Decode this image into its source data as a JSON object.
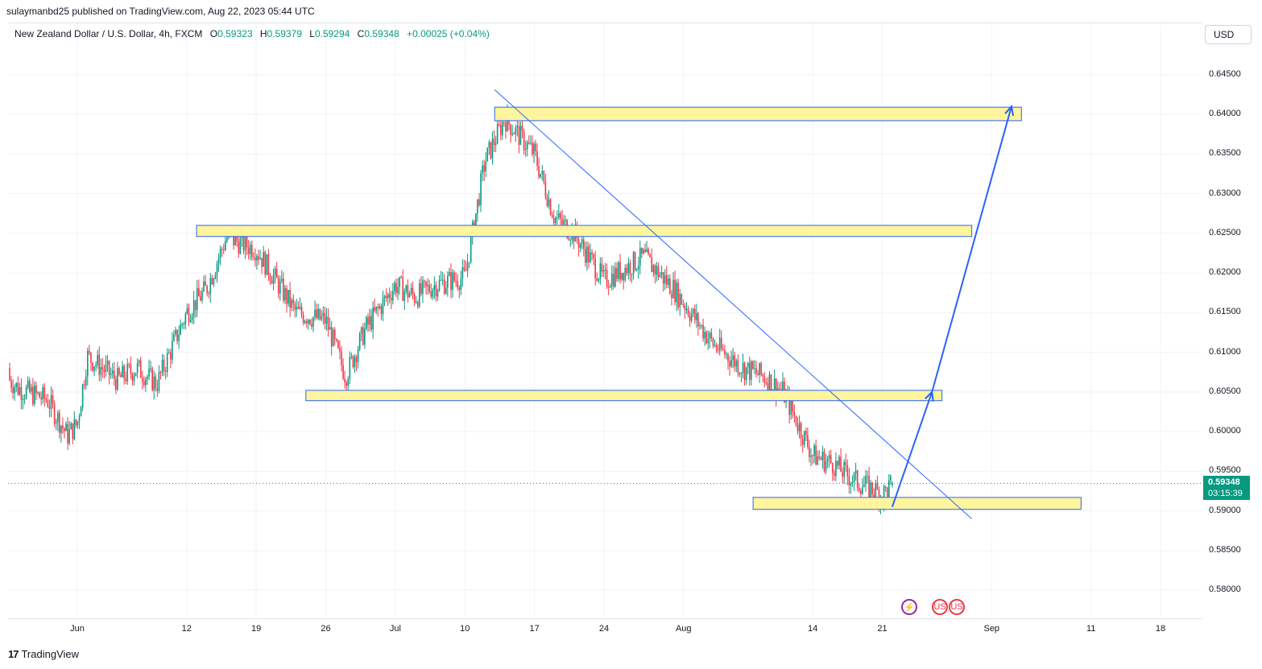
{
  "header": {
    "publish_line": "sulaymanbd25 published on TradingView.com, Aug 22, 2023 05:44 UTC"
  },
  "legend": {
    "symbol": "New Zealand Dollar / U.S. Dollar, 4h, FXCM",
    "o_label": "O",
    "o_value": "0.59323",
    "h_label": "H",
    "h_value": "0.59379",
    "l_label": "L",
    "l_value": "0.59294",
    "c_label": "C",
    "c_value": "0.59348",
    "change": "+0.00025 (+0.04%)"
  },
  "currency_button": "USD",
  "last_price": {
    "value": "0.59348",
    "countdown": "03:15:39"
  },
  "footer": {
    "brand": "TradingView",
    "logo_glyph": "17"
  },
  "colors": {
    "up": "#089981",
    "down": "#f23645",
    "zone_fill": "#fff59d",
    "zone_border": "#2962ff",
    "trend": "#2962ff",
    "grid": "#f0f3fa"
  },
  "events": [
    {
      "icon": "lightning-icon",
      "glyph": "⚡",
      "color": "#9c27b0"
    },
    {
      "icon": "us-flag-icon",
      "glyph": "US",
      "color": "#f23645"
    },
    {
      "icon": "us-flag-icon",
      "glyph": "US",
      "color": "#f23645"
    }
  ],
  "chart_data": {
    "type": "candlestick",
    "title": "",
    "xlabel": "",
    "ylabel": "",
    "ylim": [
      0.5755,
      0.65
    ],
    "y_ticks": [
      "0.64500",
      "0.64000",
      "0.63500",
      "0.63000",
      "0.62500",
      "0.62000",
      "0.61500",
      "0.61000",
      "0.60500",
      "0.60000",
      "0.59500",
      "0.59000",
      "0.58500",
      "0.58000"
    ],
    "x_ticks": [
      {
        "label": "Jun",
        "date": "2023-06-01"
      },
      {
        "label": "12",
        "date": "2023-06-12"
      },
      {
        "label": "19",
        "date": "2023-06-19"
      },
      {
        "label": "26",
        "date": "2023-06-26"
      },
      {
        "label": "Jul",
        "date": "2023-07-03"
      },
      {
        "label": "10",
        "date": "2023-07-10"
      },
      {
        "label": "17",
        "date": "2023-07-17"
      },
      {
        "label": "24",
        "date": "2023-07-24"
      },
      {
        "label": "Aug",
        "date": "2023-08-01"
      },
      {
        "label": "14",
        "date": "2023-08-14"
      },
      {
        "label": "21",
        "date": "2023-08-21"
      },
      {
        "label": "Sep",
        "date": "2023-09-01"
      },
      {
        "label": "11",
        "date": "2023-09-11"
      },
      {
        "label": "18",
        "date": "2023-09-18"
      }
    ],
    "grid": true,
    "price_path": [
      {
        "date": "2023-05-24",
        "close": 0.608
      },
      {
        "date": "2023-05-26",
        "close": 0.6055
      },
      {
        "date": "2023-05-29",
        "close": 0.604
      },
      {
        "date": "2023-05-31",
        "close": 0.5995
      },
      {
        "date": "2023-06-01",
        "close": 0.601
      },
      {
        "date": "2023-06-02",
        "close": 0.6095
      },
      {
        "date": "2023-06-05",
        "close": 0.6065
      },
      {
        "date": "2023-06-07",
        "close": 0.608
      },
      {
        "date": "2023-06-09",
        "close": 0.606
      },
      {
        "date": "2023-06-12",
        "close": 0.615
      },
      {
        "date": "2023-06-14",
        "close": 0.618
      },
      {
        "date": "2023-06-16",
        "close": 0.6245
      },
      {
        "date": "2023-06-19",
        "close": 0.623
      },
      {
        "date": "2023-06-21",
        "close": 0.619
      },
      {
        "date": "2023-06-23",
        "close": 0.615
      },
      {
        "date": "2023-06-26",
        "close": 0.614
      },
      {
        "date": "2023-06-28",
        "close": 0.607
      },
      {
        "date": "2023-06-30",
        "close": 0.613
      },
      {
        "date": "2023-07-03",
        "close": 0.6185
      },
      {
        "date": "2023-07-05",
        "close": 0.617
      },
      {
        "date": "2023-07-07",
        "close": 0.6185
      },
      {
        "date": "2023-07-10",
        "close": 0.6195
      },
      {
        "date": "2023-07-12",
        "close": 0.634
      },
      {
        "date": "2023-07-14",
        "close": 0.6395
      },
      {
        "date": "2023-07-17",
        "close": 0.635
      },
      {
        "date": "2023-07-19",
        "close": 0.627
      },
      {
        "date": "2023-07-21",
        "close": 0.625
      },
      {
        "date": "2023-07-24",
        "close": 0.619
      },
      {
        "date": "2023-07-26",
        "close": 0.6205
      },
      {
        "date": "2023-07-28",
        "close": 0.622
      },
      {
        "date": "2023-07-31",
        "close": 0.618
      },
      {
        "date": "2023-08-02",
        "close": 0.6145
      },
      {
        "date": "2023-08-04",
        "close": 0.611
      },
      {
        "date": "2023-08-07",
        "close": 0.608
      },
      {
        "date": "2023-08-09",
        "close": 0.607
      },
      {
        "date": "2023-08-11",
        "close": 0.605
      },
      {
        "date": "2023-08-14",
        "close": 0.597
      },
      {
        "date": "2023-08-16",
        "close": 0.596
      },
      {
        "date": "2023-08-18",
        "close": 0.594
      },
      {
        "date": "2023-08-21",
        "close": 0.592
      },
      {
        "date": "2023-08-22",
        "close": 0.59348
      }
    ],
    "last_candle": {
      "open": 0.59323,
      "high": 0.59379,
      "low": 0.59294,
      "close": 0.59348
    },
    "zones": [
      {
        "from": "2023-07-13",
        "to": "2023-09-04",
        "top": 0.6409,
        "bottom": 0.6392
      },
      {
        "from": "2023-06-13",
        "to": "2023-08-30",
        "top": 0.626,
        "bottom": 0.6246
      },
      {
        "from": "2023-06-24",
        "to": "2023-08-27",
        "top": 0.6052,
        "bottom": 0.6039
      },
      {
        "from": "2023-08-08",
        "to": "2023-09-10",
        "top": 0.5917,
        "bottom": 0.5902
      }
    ],
    "trendline": {
      "from": {
        "date": "2023-07-13",
        "price": 0.6431
      },
      "to": {
        "date": "2023-08-30",
        "price": 0.589
      }
    },
    "projection": [
      {
        "date": "2023-08-22",
        "price": 0.5905
      },
      {
        "date": "2023-08-26",
        "price": 0.605
      },
      {
        "date": "2023-09-03",
        "price": 0.641
      }
    ]
  }
}
